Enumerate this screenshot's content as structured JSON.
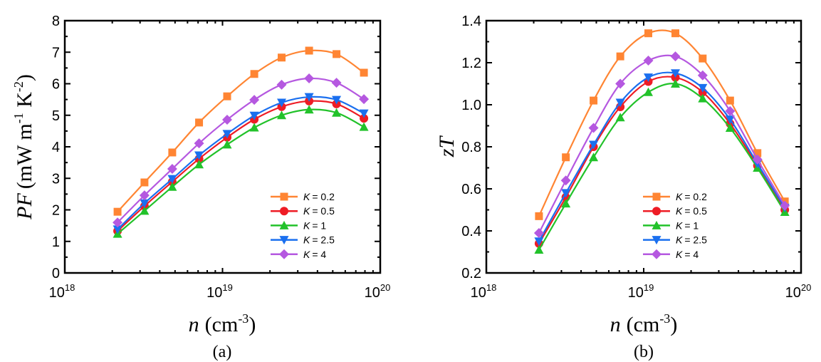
{
  "chart_data": [
    {
      "type": "line",
      "panel_label": "(a)",
      "title": "",
      "xlabel": {
        "var": "n",
        "unit": "(cm",
        "unit_sup": "-3",
        "unit_close": ")"
      },
      "ylabel": {
        "var": "PF",
        "unit": "(mW m",
        "sup1": "-1",
        "mid": " K",
        "sup2": "-2",
        "close": ")"
      },
      "xscale": "log",
      "xlim": [
        1e+18,
        1e+20
      ],
      "ylim": [
        0,
        8
      ],
      "yticks": [
        0,
        1,
        2,
        3,
        4,
        5,
        6,
        7,
        8
      ],
      "ytick_labels": [
        "0",
        "1",
        "2",
        "3",
        "4",
        "5",
        "6",
        "7",
        "8"
      ],
      "xticks": [
        {
          "base": "10",
          "exp": "18"
        },
        {
          "base": "10",
          "exp": "19"
        },
        {
          "base": "10",
          "exp": "20"
        }
      ],
      "legend_position": "bottom-right",
      "grid": false,
      "x": [
        2.16e+18,
        3.2e+18,
        4.8e+18,
        7.1e+18,
        1.07e+19,
        1.59e+19,
        2.37e+19,
        3.54e+19,
        5.28e+19,
        7.88e+19
      ],
      "series": [
        {
          "name": "K = 0.2",
          "k_label": "K",
          "k_value": "= 0.2",
          "color": "#ff8533",
          "marker": "square",
          "values": [
            1.94,
            2.87,
            3.82,
            4.77,
            5.6,
            6.31,
            6.83,
            7.05,
            6.94,
            6.35
          ]
        },
        {
          "name": "K = 0.5",
          "k_label": "K",
          "k_value": "= 0.5",
          "color": "#ee1c25",
          "marker": "circle",
          "values": [
            1.33,
            2.12,
            2.89,
            3.62,
            4.3,
            4.87,
            5.27,
            5.45,
            5.36,
            4.9
          ]
        },
        {
          "name": "K = 1",
          "k_label": "K",
          "k_value": "= 1",
          "color": "#22c22a",
          "marker": "triangle-up",
          "values": [
            1.24,
            1.97,
            2.73,
            3.44,
            4.07,
            4.61,
            5.0,
            5.18,
            5.08,
            4.63
          ]
        },
        {
          "name": "K = 2.5",
          "k_label": "K",
          "k_value": "= 2.5",
          "color": "#1a6fef",
          "marker": "triangle-down",
          "values": [
            1.38,
            2.21,
            2.98,
            3.73,
            4.41,
            4.99,
            5.4,
            5.58,
            5.49,
            5.06
          ]
        },
        {
          "name": "K = 4",
          "k_label": "K",
          "k_value": "= 4",
          "color": "#b558e0",
          "marker": "diamond",
          "values": [
            1.6,
            2.46,
            3.3,
            4.11,
            4.86,
            5.49,
            5.97,
            6.17,
            6.03,
            5.51
          ]
        }
      ]
    },
    {
      "type": "line",
      "panel_label": "(b)",
      "title": "",
      "xlabel": {
        "var": "n",
        "unit": "(cm",
        "unit_sup": "-3",
        "unit_close": ")"
      },
      "ylabel": {
        "var": "zT"
      },
      "xscale": "log",
      "xlim": [
        1e+18,
        1e+20
      ],
      "ylim": [
        0.2,
        1.4
      ],
      "yticks": [
        0.2,
        0.4,
        0.6,
        0.8,
        1.0,
        1.2,
        1.4
      ],
      "ytick_labels": [
        "0.2",
        "0.4",
        "0.6",
        "0.8",
        "1.0",
        "1.2",
        "1.4"
      ],
      "xticks": [
        {
          "base": "10",
          "exp": "18"
        },
        {
          "base": "10",
          "exp": "19"
        },
        {
          "base": "10",
          "exp": "20"
        }
      ],
      "legend_position": "bottom-right",
      "grid": false,
      "x": [
        2.16e+18,
        3.2e+18,
        4.8e+18,
        7.1e+18,
        1.07e+19,
        1.59e+19,
        2.37e+19,
        3.54e+19,
        5.28e+19,
        7.88e+19
      ],
      "series": [
        {
          "name": "K = 0.2",
          "k_label": "K",
          "k_value": "= 0.2",
          "color": "#ff8533",
          "marker": "square",
          "values": [
            0.47,
            0.75,
            1.02,
            1.23,
            1.34,
            1.34,
            1.22,
            1.02,
            0.77,
            0.54
          ]
        },
        {
          "name": "K = 0.5",
          "k_label": "K",
          "k_value": "= 0.5",
          "color": "#ee1c25",
          "marker": "circle",
          "values": [
            0.34,
            0.56,
            0.8,
            0.99,
            1.11,
            1.13,
            1.06,
            0.91,
            0.71,
            0.5
          ]
        },
        {
          "name": "K = 1",
          "k_label": "K",
          "k_value": "= 1",
          "color": "#22c22a",
          "marker": "triangle-up",
          "values": [
            0.31,
            0.53,
            0.75,
            0.94,
            1.06,
            1.1,
            1.03,
            0.89,
            0.7,
            0.49
          ]
        },
        {
          "name": "K = 2.5",
          "k_label": "K",
          "k_value": "= 2.5",
          "color": "#1a6fef",
          "marker": "triangle-down",
          "values": [
            0.35,
            0.58,
            0.81,
            1.01,
            1.13,
            1.15,
            1.08,
            0.93,
            0.72,
            0.51
          ]
        },
        {
          "name": "K = 4",
          "k_label": "K",
          "k_value": "= 4",
          "color": "#b558e0",
          "marker": "diamond",
          "values": [
            0.39,
            0.64,
            0.89,
            1.1,
            1.21,
            1.23,
            1.14,
            0.97,
            0.74,
            0.52
          ]
        }
      ]
    }
  ]
}
